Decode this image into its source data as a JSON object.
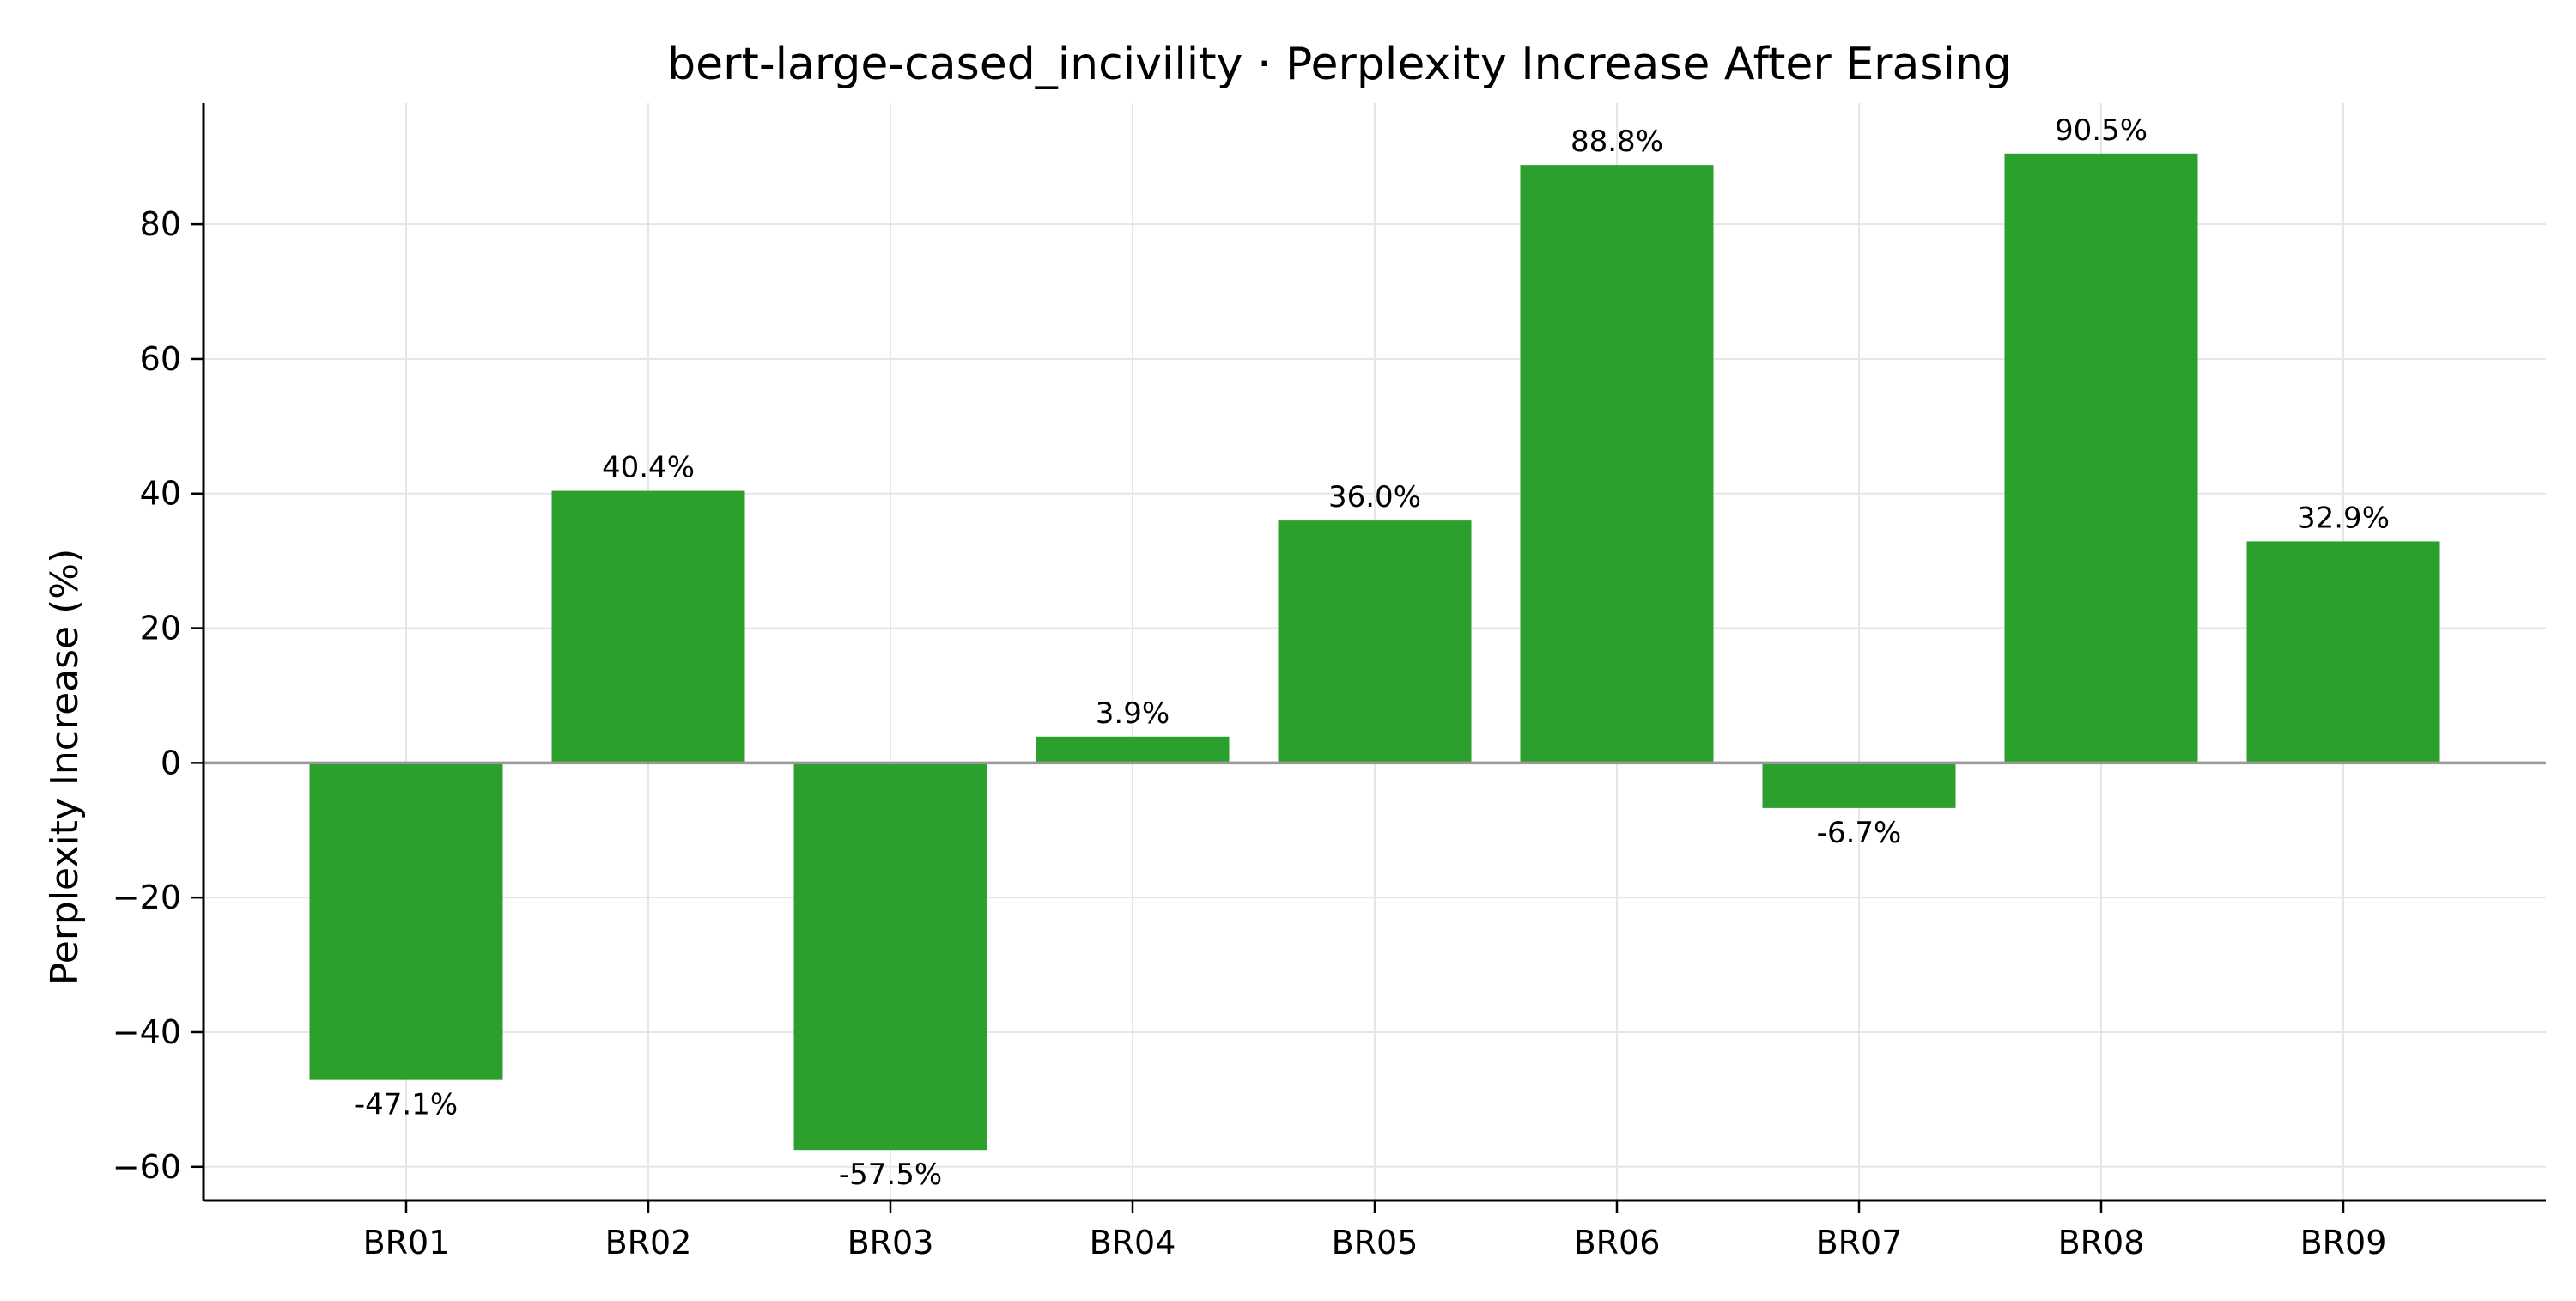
{
  "chart_data": {
    "type": "bar",
    "title": "bert-large-cased_incivility · Perplexity Increase After Erasing",
    "xlabel": "",
    "ylabel": "Perplexity Increase (%)",
    "categories": [
      "BR01",
      "BR02",
      "BR03",
      "BR04",
      "BR05",
      "BR06",
      "BR07",
      "BR08",
      "BR09"
    ],
    "values": [
      -47.1,
      40.4,
      -57.5,
      3.9,
      36.0,
      88.8,
      -6.7,
      90.5,
      32.9
    ],
    "value_labels": [
      "-47.1%",
      "40.4%",
      "-57.5%",
      "3.9%",
      "36.0%",
      "88.8%",
      "-6.7%",
      "90.5%",
      "32.9%"
    ],
    "ylim": [
      -65,
      98
    ],
    "yticks": [
      -60,
      -40,
      -20,
      0,
      20,
      40,
      60,
      80
    ],
    "ytick_labels": [
      "−60",
      "−40",
      "−20",
      "0",
      "20",
      "40",
      "60",
      "80"
    ],
    "grid": true,
    "bar_color": "#2ca02c",
    "zero_line_color": "#999999",
    "grid_color": "#e6e6e6"
  }
}
